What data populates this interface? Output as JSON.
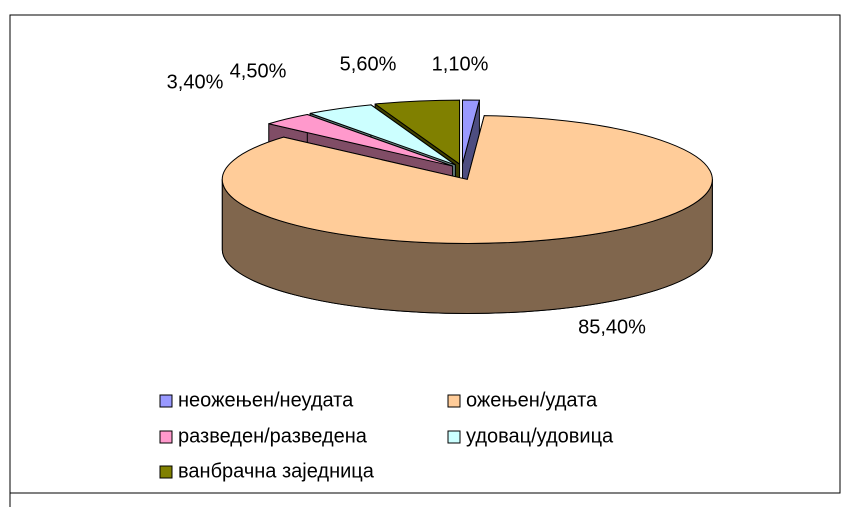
{
  "chart_data": {
    "type": "pie",
    "categories": [
      "неожењен/неудата",
      "ожењен/удата",
      "разведен/разведена",
      "удовац/удовица",
      "ванбрачна заједница"
    ],
    "values": [
      1.1,
      85.4,
      3.4,
      4.5,
      5.6
    ],
    "value_labels": [
      "1,10%",
      "85,40%",
      "3,40%",
      "4,50%",
      "5,60%"
    ],
    "colors": [
      "#9999ff",
      "#ffcc99",
      "#ff99cc",
      "#ccffff",
      "#808000"
    ],
    "legend": "bottom"
  }
}
